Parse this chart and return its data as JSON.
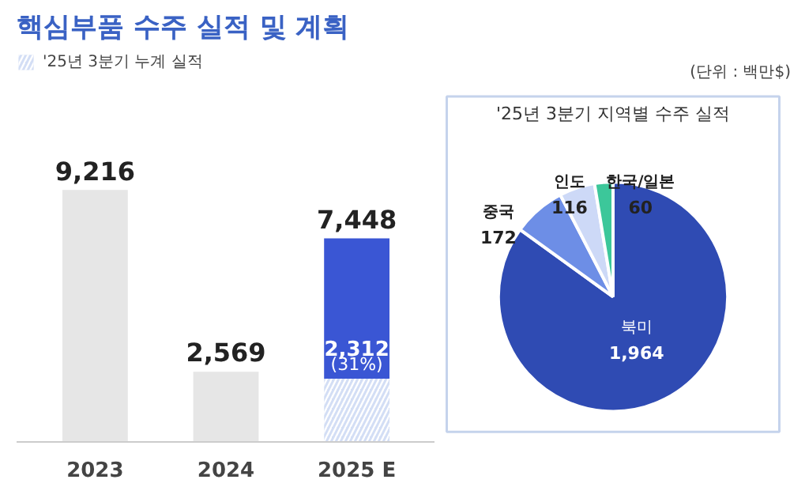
{
  "chart_data": [
    {
      "type": "bar",
      "title": "핵심부품 수주 실적 및 계획",
      "categories": [
        "2023",
        "2024",
        "2025 E"
      ],
      "stacked": true,
      "legend": "top left",
      "series": [
        {
          "color": "#e6e6e6",
          "values": [
            9216,
            2569,
            null
          ]
        },
        {
          "name": "'25년 3분기 누계 실적",
          "color": "#d3def5",
          "values": [
            null,
            null,
            2312
          ],
          "value_labels": [
            null,
            null,
            "2,312 (31%)"
          ]
        },
        {
          "color": "#3a56d4",
          "values": [
            null,
            null,
            5136
          ]
        }
      ],
      "totals": [
        "9,216",
        "2,569",
        "7,448"
      ]
    },
    {
      "type": "pie",
      "title": "'25년 3분기 지역별 수주 실적",
      "categories": [
        "북미",
        "중국",
        "인도",
        "한국/일본"
      ],
      "values": [
        1964,
        172,
        116,
        60
      ],
      "colors": [
        "#2f4bb3",
        "#6d8ee6",
        "#cdd9f7",
        "#3cc79a"
      ],
      "value_labels": [
        "1,964",
        "172",
        "116",
        "60"
      ],
      "annotations": [
        "(단위 : 백만$)"
      ]
    }
  ]
}
